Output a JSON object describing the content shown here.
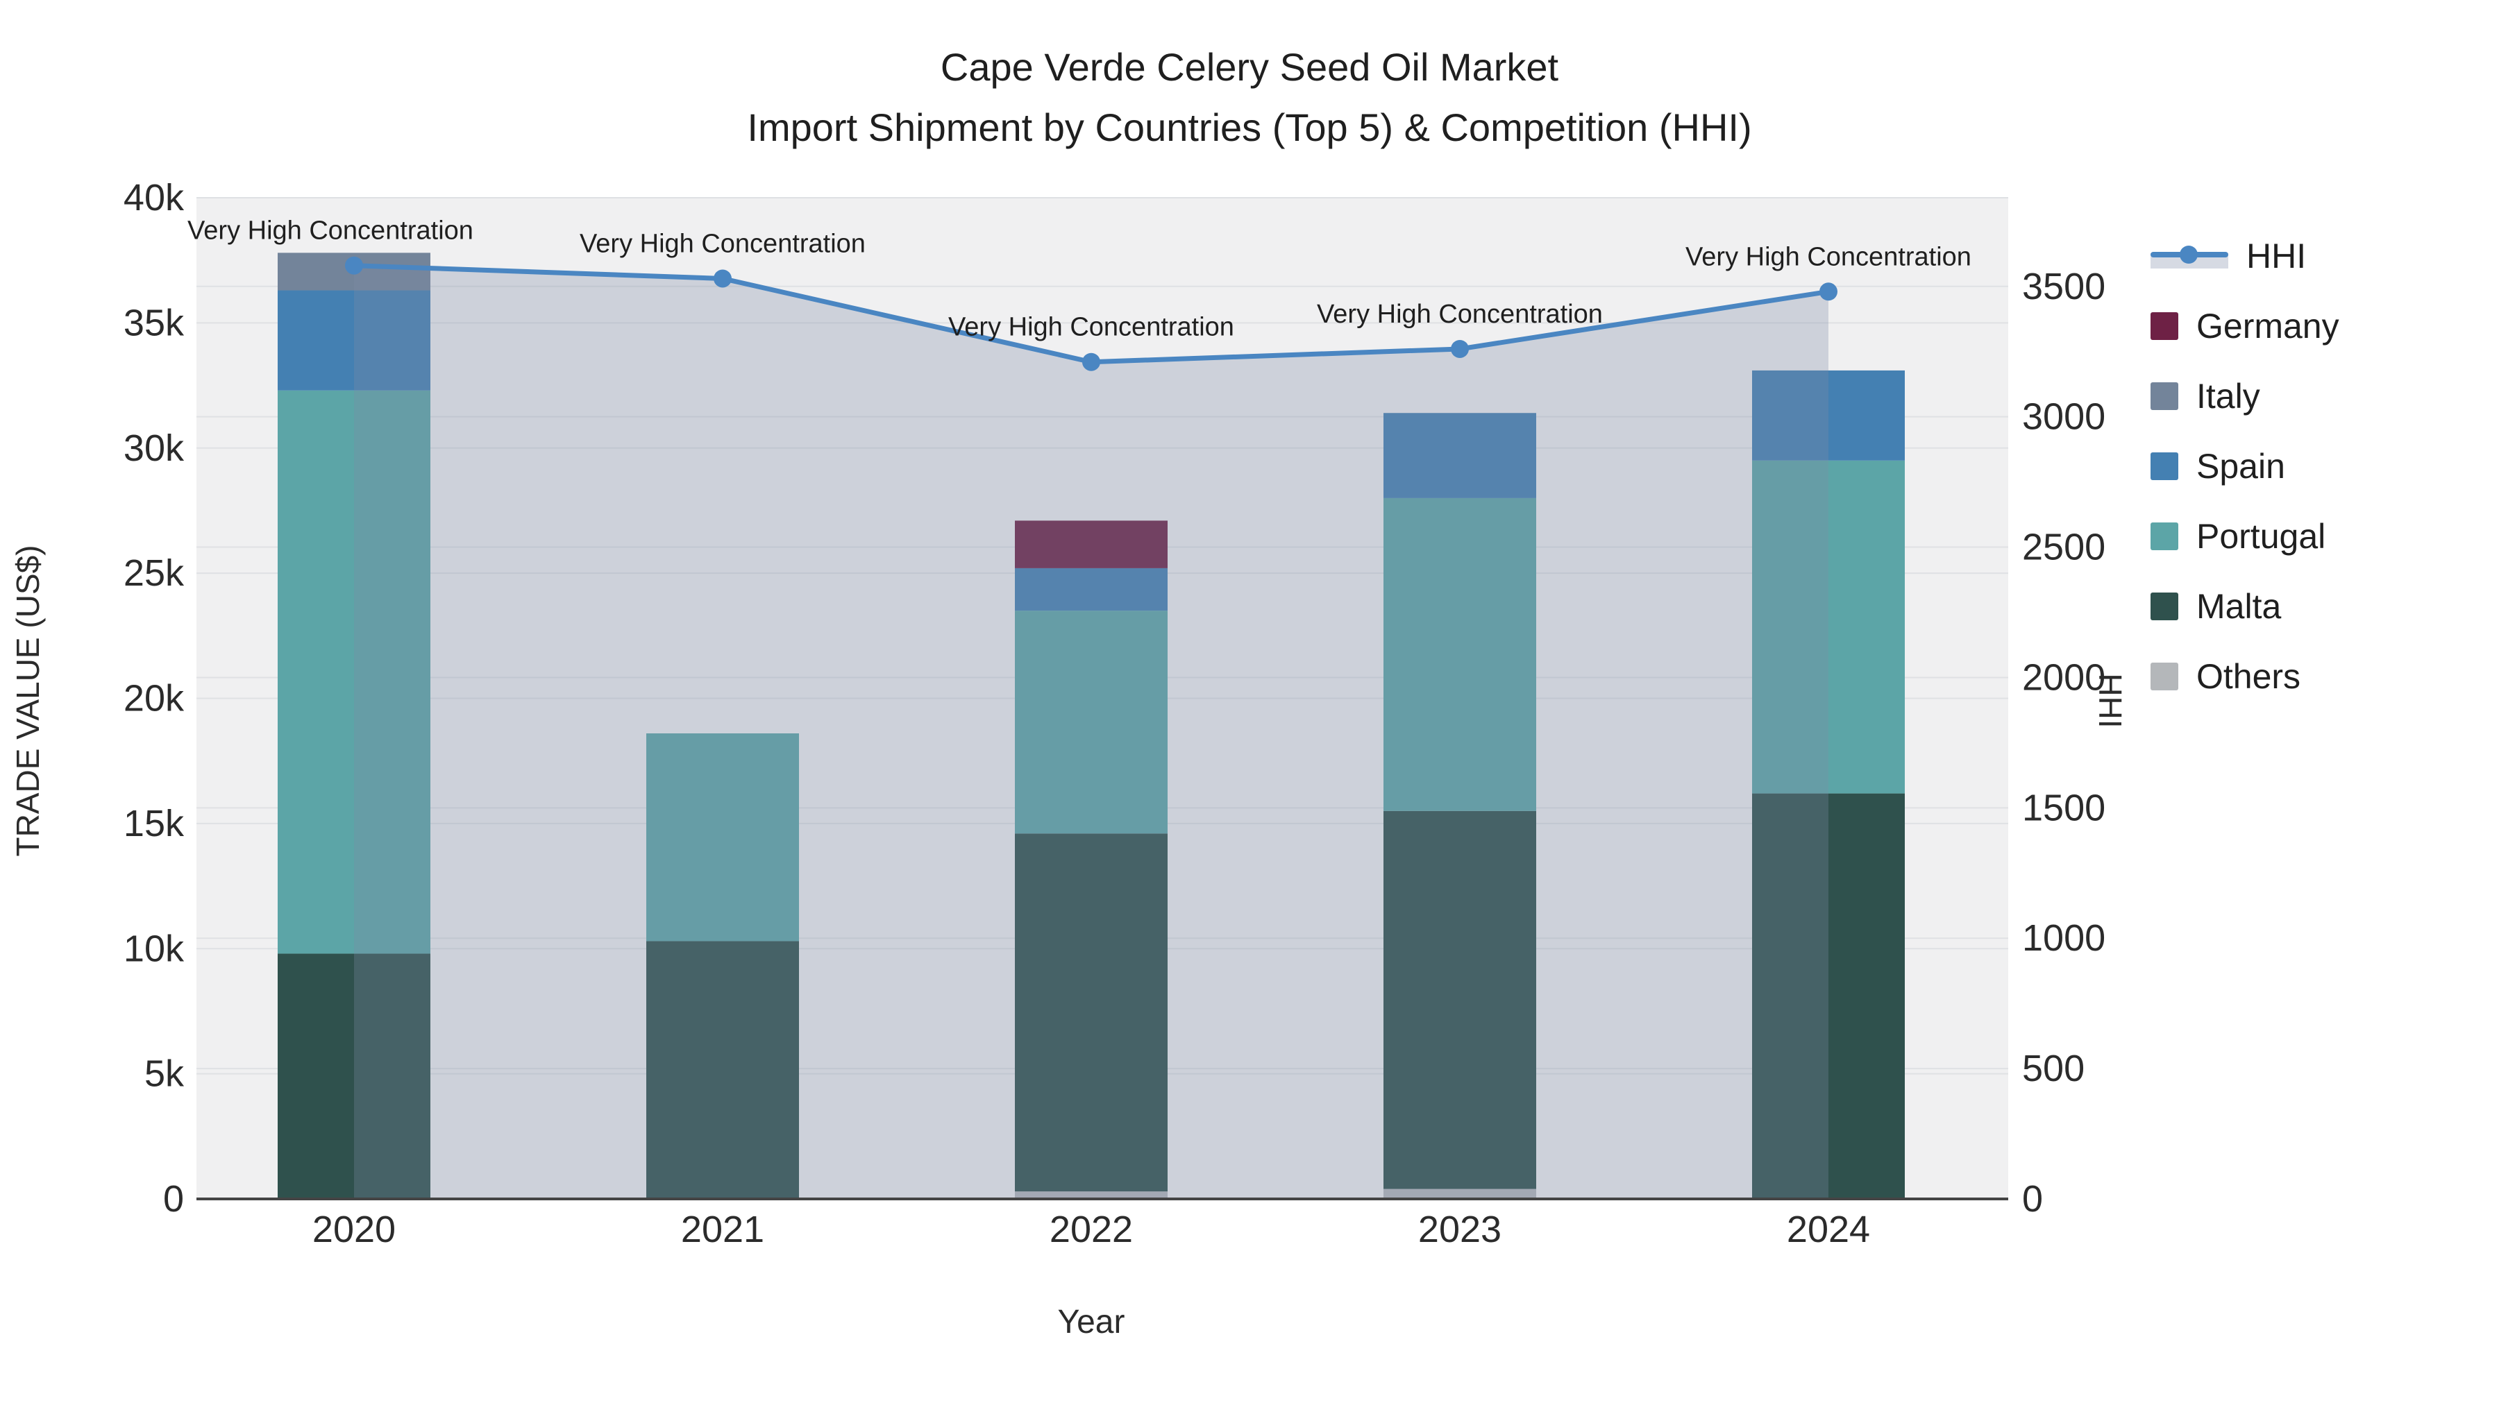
{
  "title": {
    "line1": "Cape Verde Celery Seed Oil Market",
    "line2": "Import Shipment by Countries (Top 5) & Competition (HHI)"
  },
  "axes": {
    "x_title": "Year",
    "y_left_title": "TRADE VALUE (US$)",
    "y_right_title": "HHI",
    "x_tick_labels": [
      "2020",
      "2021",
      "2022",
      "2023",
      "2024"
    ],
    "y_left_tick_labels": [
      "0",
      "5k",
      "10k",
      "15k",
      "20k",
      "25k",
      "30k",
      "35k",
      "40k"
    ],
    "y_right_tick_labels": [
      "0",
      "500",
      "1000",
      "1500",
      "2000",
      "2500",
      "3000",
      "3500"
    ]
  },
  "legend": {
    "items": [
      {
        "label": "HHI",
        "type": "line",
        "color": "#4a86c2"
      },
      {
        "label": "Germany",
        "type": "bar",
        "color": "#6e2145"
      },
      {
        "label": "Italy",
        "type": "bar",
        "color": "#73849a"
      },
      {
        "label": "Spain",
        "type": "bar",
        "color": "#4480b2"
      },
      {
        "label": "Portugal",
        "type": "bar",
        "color": "#5ca5a7"
      },
      {
        "label": "Malta",
        "type": "bar",
        "color": "#2f514d"
      },
      {
        "label": "Others",
        "type": "bar",
        "color": "#b4b7ba"
      }
    ]
  },
  "colors": {
    "plot_background": "#f0f0f1",
    "gridline": "#dfe1e4",
    "axis_line": "#444444",
    "hhi_line": "#4a86c2",
    "area_fill": "rgba(125,138,165,0.30)",
    "text": "#1f1f1f"
  },
  "chart_data": {
    "type": "bar",
    "subtype": "stacked-bars-with-line-dual-axis",
    "title": "Cape Verde Celery Seed Oil Market — Import Shipment by Countries (Top 5) & Competition (HHI)",
    "xlabel": "Year",
    "ylabel_left": "TRADE VALUE (US$)",
    "ylabel_right": "HHI",
    "categories": [
      2020,
      2021,
      2022,
      2023,
      2024
    ],
    "stack_order": [
      "Others",
      "Malta",
      "Portugal",
      "Spain",
      "Italy",
      "Germany"
    ],
    "series": [
      {
        "name": "Others",
        "color": "#b4b7ba",
        "values": [
          0,
          0,
          300,
          400,
          0
        ]
      },
      {
        "name": "Malta",
        "color": "#2f514d",
        "values": [
          9800,
          10300,
          14300,
          15100,
          16200
        ]
      },
      {
        "name": "Portugal",
        "color": "#5ca5a7",
        "values": [
          22500,
          8300,
          8900,
          12500,
          13300
        ]
      },
      {
        "name": "Spain",
        "color": "#4480b2",
        "values": [
          4000,
          0,
          1700,
          3400,
          3600
        ]
      },
      {
        "name": "Italy",
        "color": "#73849a",
        "values": [
          1500,
          0,
          0,
          0,
          0
        ]
      },
      {
        "name": "Germany",
        "color": "#6e2145",
        "values": [
          0,
          0,
          1900,
          0,
          0
        ]
      }
    ],
    "bar_totals": [
      37800,
      18600,
      27100,
      31400,
      33100
    ],
    "line": {
      "name": "HHI",
      "color": "#4a86c2",
      "values": [
        3580,
        3530,
        3210,
        3260,
        3480
      ],
      "area_fill": "rgba(125,138,165,0.30)",
      "point_annotation": "Very High Concentration"
    },
    "y_left_axis": {
      "min": 0,
      "max": 40000,
      "tick_step": 5000
    },
    "y_right_axis": {
      "min": 0,
      "max": 3840,
      "ticks": [
        0,
        500,
        1000,
        1500,
        2000,
        2500,
        3000,
        3500
      ]
    },
    "grid": true,
    "legend_position": "right"
  }
}
